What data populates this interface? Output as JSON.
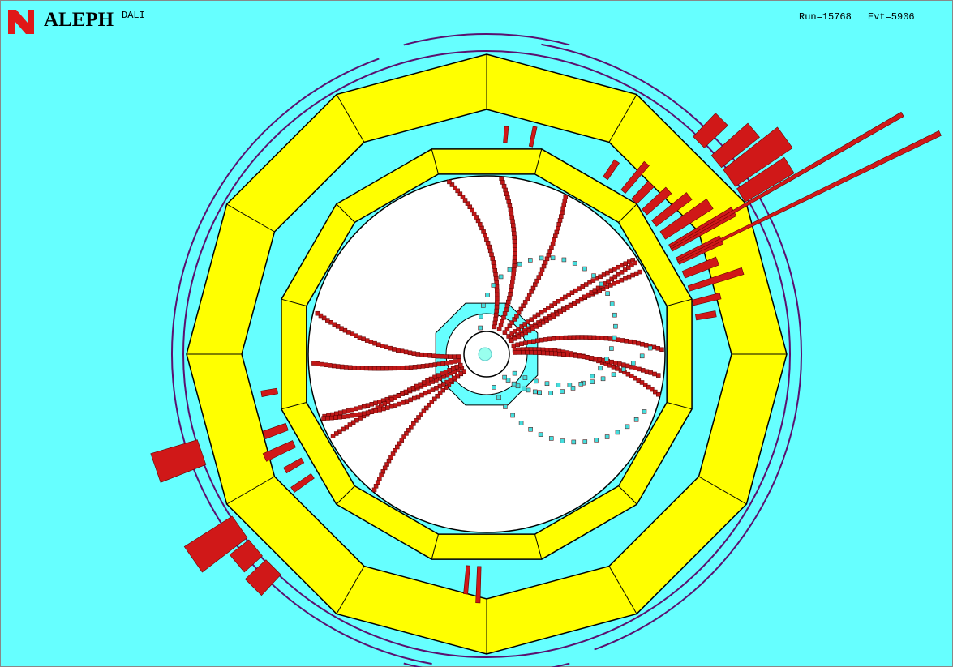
{
  "header": {
    "experiment": "ALEPH",
    "program": "DALI",
    "run": "Run=15768",
    "event": "Evt=5906"
  }
}
